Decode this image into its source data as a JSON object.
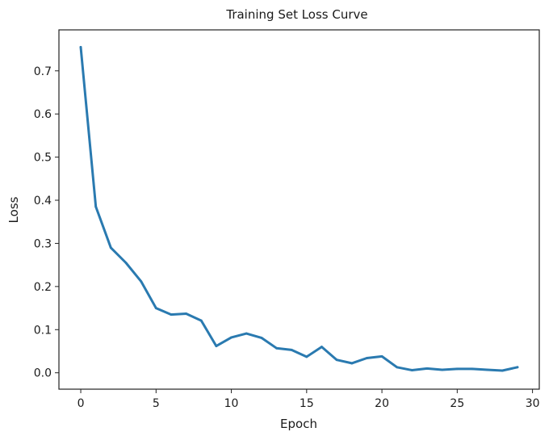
{
  "chart_data": {
    "type": "line",
    "title": "Training Set Loss Curve",
    "xlabel": "Epoch",
    "ylabel": "Loss",
    "xlim": [
      -1.45,
      30.45
    ],
    "ylim": [
      -0.038,
      0.795
    ],
    "xticks": [
      0,
      5,
      10,
      15,
      20,
      25,
      30
    ],
    "yticks": [
      0.0,
      0.1,
      0.2,
      0.3,
      0.4,
      0.5,
      0.6,
      0.7
    ],
    "grid": false,
    "series": [
      {
        "color": "#2a7ab0",
        "x": [
          0,
          1,
          2,
          3,
          4,
          5,
          6,
          7,
          8,
          9,
          10,
          11,
          12,
          13,
          14,
          15,
          16,
          17,
          18,
          19,
          20,
          21,
          22,
          23,
          24,
          25,
          26,
          27,
          28,
          29
        ],
        "y": [
          0.755,
          0.385,
          0.29,
          0.255,
          0.212,
          0.15,
          0.135,
          0.137,
          0.121,
          0.062,
          0.082,
          0.091,
          0.081,
          0.057,
          0.053,
          0.037,
          0.06,
          0.03,
          0.022,
          0.034,
          0.038,
          0.013,
          0.006,
          0.01,
          0.007,
          0.009,
          0.009,
          0.007,
          0.005,
          0.013
        ]
      }
    ]
  }
}
